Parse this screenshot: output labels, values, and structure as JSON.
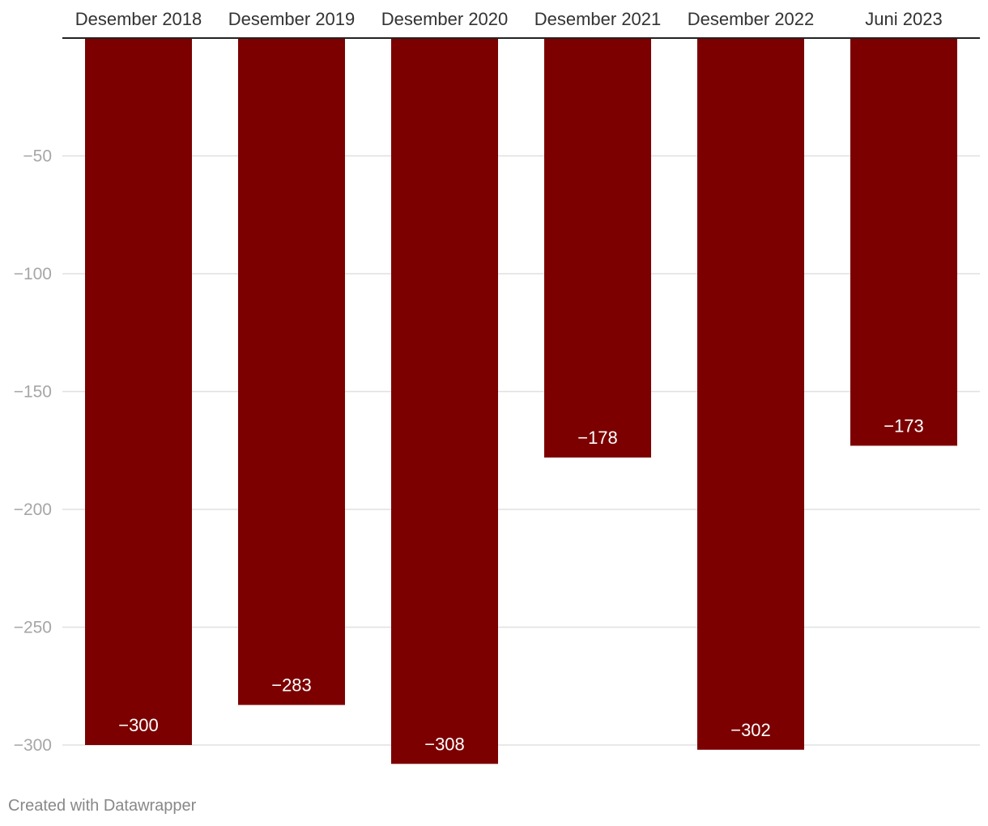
{
  "chart_data": {
    "type": "bar",
    "categories": [
      "Desember 2018",
      "Desember 2019",
      "Desember 2020",
      "Desember 2021",
      "Desember 2022",
      "Juni 2023"
    ],
    "values": [
      -300,
      -283,
      -308,
      -178,
      -302,
      -173
    ],
    "value_labels": [
      "−300",
      "−283",
      "−308",
      "−178",
      "−302",
      "−173"
    ],
    "yticks": [
      -50,
      -100,
      -150,
      -200,
      -250,
      -300
    ],
    "ytick_labels": [
      "−50",
      "−100",
      "−150",
      "−200",
      "−250",
      "−300"
    ],
    "ylim": [
      -308,
      0
    ],
    "grid": true,
    "xaxis_position": "top",
    "colors": {
      "bar": "#7c0000",
      "label": "#ffffff",
      "grid": "#e0e0e0",
      "tick": "#a6a6a6",
      "category": "#333333",
      "axis": "#222222"
    },
    "title": "",
    "xlabel": "",
    "ylabel": ""
  },
  "footer": {
    "credit": "Created with Datawrapper"
  }
}
